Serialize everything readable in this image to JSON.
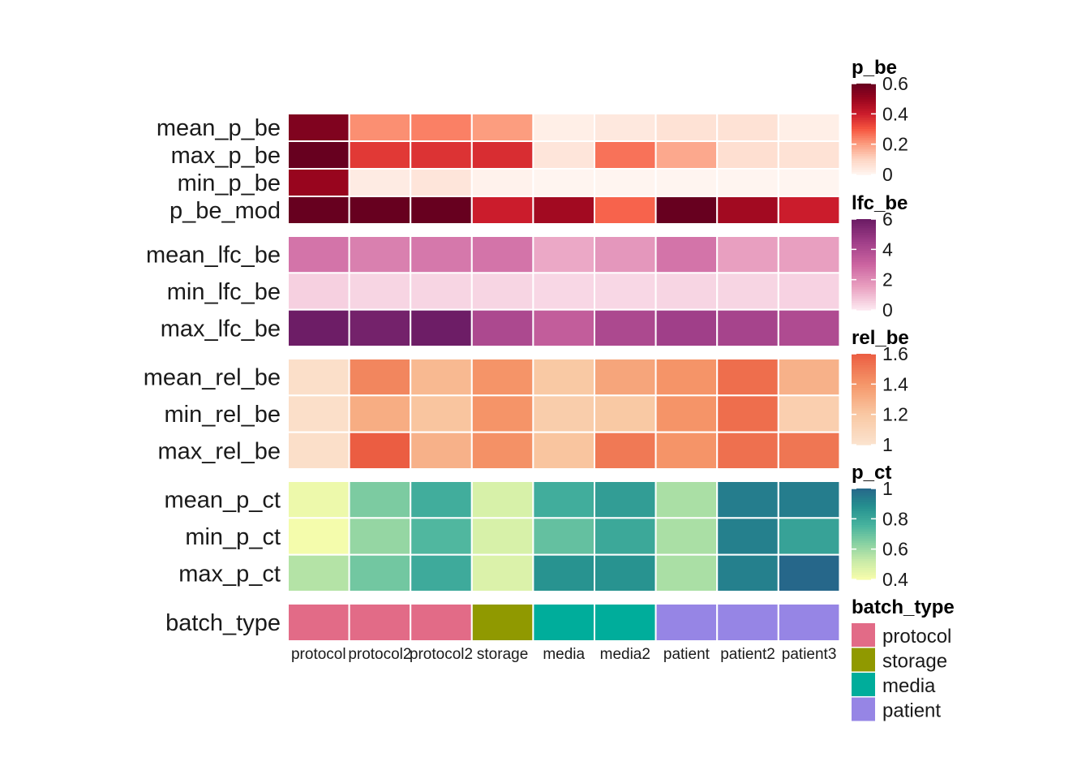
{
  "chart_data": {
    "type": "heatmap",
    "columns": [
      "protocol",
      "protocol2",
      "protocol2",
      "storage",
      "media",
      "media2",
      "patient",
      "patient2",
      "patient3"
    ],
    "groups": [
      {
        "legend_title": "p_be",
        "ticks": [
          "0",
          "0.2",
          "0.4",
          "0.6"
        ],
        "range": [
          0,
          0.6
        ],
        "palette": [
          "#fff5f0",
          "#fdd5c3",
          "#fc9d7f",
          "#f6553f",
          "#cb1c2c",
          "#98051e",
          "#67001f"
        ],
        "rows": [
          {
            "label": "mean_p_be",
            "values": [
              0.55,
              0.22,
              0.24,
              0.2,
              0.02,
              0.04,
              0.06,
              0.06,
              0.02
            ]
          },
          {
            "label": "max_p_be",
            "values": [
              0.64,
              0.35,
              0.36,
              0.37,
              0.05,
              0.26,
              0.18,
              0.07,
              0.06
            ]
          },
          {
            "label": "min_p_be",
            "values": [
              0.5,
              0.03,
              0.05,
              0.01,
              0.0,
              0.0,
              0.0,
              0.0,
              0.0
            ]
          },
          {
            "label": "p_be_mod",
            "values": [
              0.64,
              0.64,
              0.64,
              0.4,
              0.48,
              0.28,
              0.6,
              0.48,
              0.4
            ]
          }
        ]
      },
      {
        "legend_title": "lfc_be",
        "ticks": [
          "0",
          "2",
          "4",
          "6"
        ],
        "range": [
          0,
          6.2
        ],
        "palette": [
          "#fdeaf1",
          "#e9a1c1",
          "#cb64a0",
          "#9f3e88",
          "#6a1b64"
        ],
        "rows": [
          {
            "label": "mean_lfc_be",
            "values": [
              2.7,
              2.4,
              2.6,
              2.7,
              1.4,
              1.8,
              2.7,
              1.6,
              1.6
            ]
          },
          {
            "label": "min_lfc_be",
            "values": [
              0.55,
              0.45,
              0.45,
              0.45,
              0.4,
              0.4,
              0.45,
              0.45,
              0.5
            ]
          },
          {
            "label": "max_lfc_be",
            "values": [
              6.1,
              5.9,
              6.1,
              4.2,
              3.4,
              4.2,
              4.6,
              4.4,
              4.1
            ]
          }
        ]
      },
      {
        "legend_title": "rel_be",
        "ticks": [
          "1",
          "1.2",
          "1.4",
          "1.6"
        ],
        "range": [
          1.0,
          1.62
        ],
        "palette": [
          "#fbe3cf",
          "#f9c8a3",
          "#f59669",
          "#eb5d42"
        ],
        "rows": [
          {
            "label": "mean_rel_be",
            "values": [
              1.03,
              1.47,
              1.27,
              1.42,
              1.2,
              1.35,
              1.42,
              1.56,
              1.3
            ]
          },
          {
            "label": "min_rel_be",
            "values": [
              1.03,
              1.32,
              1.22,
              1.42,
              1.17,
              1.2,
              1.42,
              1.56,
              1.15
            ]
          },
          {
            "label": "max_rel_be",
            "values": [
              1.03,
              1.62,
              1.3,
              1.43,
              1.22,
              1.52,
              1.42,
              1.55,
              1.53
            ]
          }
        ]
      },
      {
        "legend_title": "p_ct",
        "ticks": [
          "0.4",
          "0.6",
          "0.8",
          "1"
        ],
        "range": [
          0.37,
          1.02
        ],
        "palette": [
          "#f8fdac",
          "#c9eba8",
          "#86d0a2",
          "#46b29e",
          "#25908f",
          "#26678a"
        ],
        "rows": [
          {
            "label": "mean_p_ct",
            "values": [
              0.4,
              0.65,
              0.78,
              0.46,
              0.78,
              0.84,
              0.56,
              0.95,
              0.95
            ]
          },
          {
            "label": "min_p_ct",
            "values": [
              0.38,
              0.6,
              0.74,
              0.46,
              0.7,
              0.8,
              0.56,
              0.94,
              0.82
            ]
          },
          {
            "label": "max_p_ct",
            "values": [
              0.54,
              0.67,
              0.79,
              0.45,
              0.88,
              0.88,
              0.56,
              0.94,
              1.02
            ]
          }
        ]
      }
    ],
    "batch_row": {
      "label": "batch_type",
      "legend_title": "batch_type",
      "values": [
        "protocol",
        "protocol",
        "protocol",
        "storage",
        "media",
        "media",
        "patient",
        "patient",
        "patient"
      ],
      "categories": [
        {
          "name": "protocol",
          "color": "#e26b87"
        },
        {
          "name": "storage",
          "color": "#909900"
        },
        {
          "name": "media",
          "color": "#00ad9b"
        },
        {
          "name": "patient",
          "color": "#9685e5"
        }
      ]
    }
  }
}
